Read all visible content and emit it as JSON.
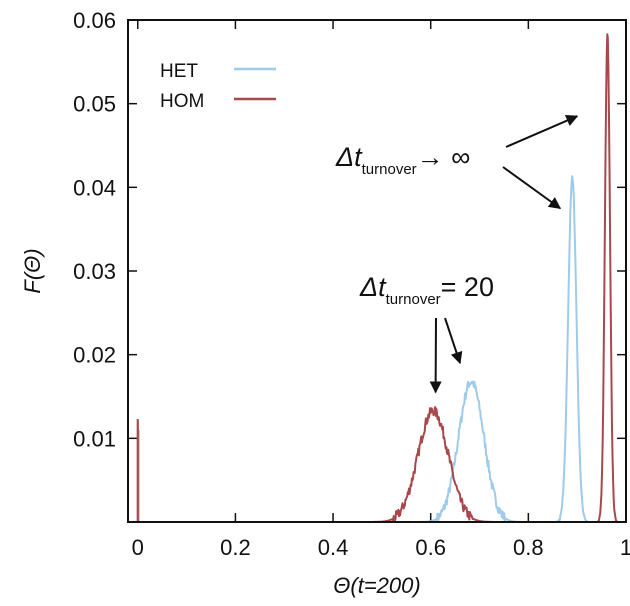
{
  "chart_data": {
    "type": "line",
    "xlabel": "Θ(t=200)",
    "ylabel": "F(Θ)",
    "xlim": [
      -0.02,
      1.0
    ],
    "ylim": [
      0,
      0.06
    ],
    "x_ticks": [
      0,
      0.2,
      0.4,
      0.6,
      0.8,
      1
    ],
    "x_tick_labels": [
      "0",
      "0.2",
      "0.4",
      "0.6",
      "0.8",
      "1"
    ],
    "y_ticks": [
      0.01,
      0.02,
      0.03,
      0.04,
      0.05,
      0.06
    ],
    "y_tick_labels": [
      "0.01",
      "0.02",
      "0.03",
      "0.04",
      "0.05",
      "0.06"
    ],
    "grid": false,
    "legend_position": "top-left",
    "series": [
      {
        "name": "HET",
        "color": "#9ecbe9",
        "spike": {
          "x": 0.002,
          "y": 0.011
        },
        "peaks": [
          {
            "center": 0.683,
            "height": 0.0168,
            "sigma": 0.026,
            "noise": 0.0006
          },
          {
            "center": 0.89,
            "height": 0.0412,
            "sigma": 0.0085,
            "noise": 0.0002
          }
        ]
      },
      {
        "name": "HOM",
        "color": "#a8484d",
        "spike": {
          "x": 0.0,
          "y": 0.0123
        },
        "peaks": [
          {
            "center": 0.605,
            "height": 0.0133,
            "sigma": 0.031,
            "noise": 0.0006
          },
          {
            "center": 0.962,
            "height": 0.0584,
            "sigma": 0.0052,
            "noise": 0.0002
          }
        ]
      }
    ],
    "annotations": [
      {
        "main": "Δt",
        "sub": "turnover",
        "rest": "= 20",
        "arrows_to": [
          [
            0.61,
            0.0155
          ],
          [
            0.66,
            0.019
          ]
        ]
      },
      {
        "main": "Δt",
        "sub": "turnover",
        "rest": "→ ∞",
        "arrows_to": [
          [
            0.9,
            0.0485
          ],
          [
            0.865,
            0.0375
          ]
        ]
      }
    ]
  }
}
